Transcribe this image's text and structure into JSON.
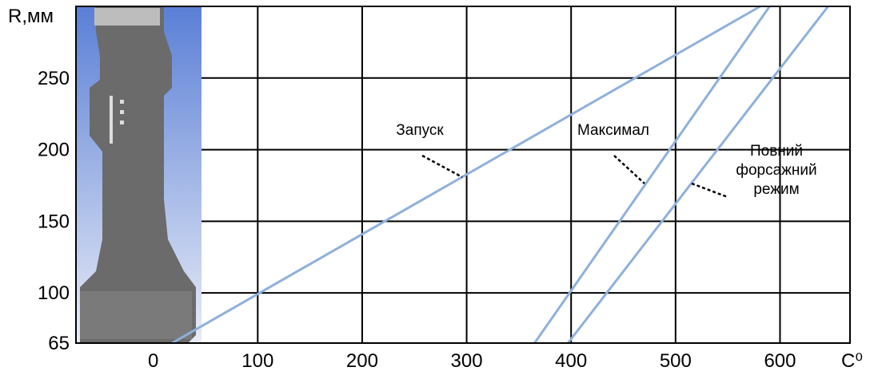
{
  "chart_data": {
    "type": "line",
    "y_label": "R,мм",
    "x_label": "C⁰",
    "xlim": [
      -74,
      667
    ],
    "ylim": [
      65,
      300
    ],
    "xticks": [
      0,
      100,
      200,
      300,
      400,
      500,
      600
    ],
    "yticks": [
      65,
      100,
      150,
      200,
      250
    ],
    "grid": true,
    "series": [
      {
        "name": "Запуск",
        "color": "#8fb0dc",
        "x": [
          18,
          581
        ],
        "values": [
          65,
          300
        ]
      },
      {
        "name": "Максимал",
        "color": "#8fb0dc",
        "x": [
          365,
          590
        ],
        "values": [
          65,
          300
        ]
      },
      {
        "name": "Повний форсажний режим",
        "color": "#8fb0dc",
        "x": [
          397,
          646
        ],
        "values": [
          65,
          300
        ]
      }
    ]
  }
}
